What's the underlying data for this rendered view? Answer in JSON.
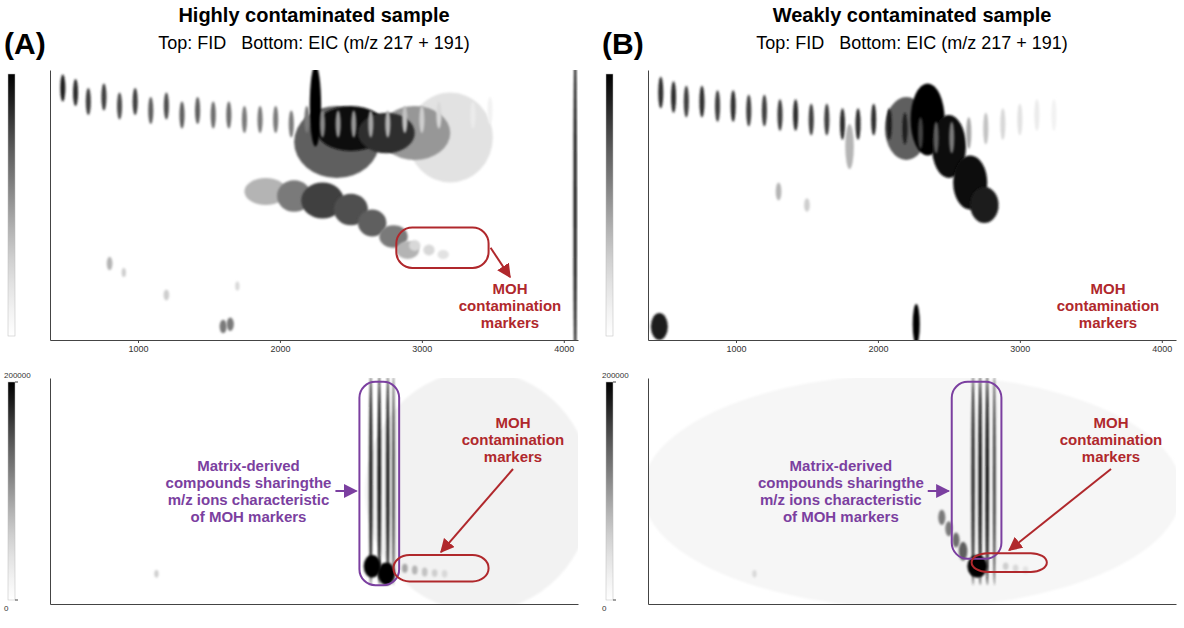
{
  "panels": [
    {
      "letter": "(A)",
      "title": "Highly contaminated sample",
      "subtitle": "Top: FID   Bottom: EIC (m/z 217 + 191)"
    },
    {
      "letter": "(B)",
      "title": "Weakly contaminated sample",
      "subtitle": "Top: FID   Bottom: EIC (m/z 217 + 191)"
    }
  ],
  "chart_data": [
    {
      "type": "heatmap",
      "xlim": [
        380,
        4100
      ],
      "xticks": [
        1000,
        2000,
        3000,
        4000
      ],
      "ylim": [
        0,
        6
      ],
      "tick_labels": "x",
      "zlim": [
        0,
        100
      ],
      "spots": {
        "x": [
          3200,
          2400,
          2950,
          2500,
          2750,
          2250,
          470,
          560,
          650,
          760,
          870,
          980,
          1090,
          1200,
          1310,
          1420,
          1530,
          1640,
          1750,
          1860,
          1970,
          2080,
          2190,
          2300,
          2410,
          2520,
          2640,
          2760,
          2880,
          3000,
          3120,
          3240,
          3360,
          3480,
          1900,
          2100,
          2300,
          2500,
          2650,
          2800,
          2900,
          800,
          1200,
          1600,
          1650,
          900,
          1700,
          2950,
          3050,
          3150,
          4080
        ],
        "y": [
          4.5,
          4.4,
          4.6,
          4.7,
          4.6,
          5.2,
          5.6,
          5.5,
          5.3,
          5.4,
          5.2,
          5.3,
          5.1,
          5.2,
          5.0,
          5.1,
          5.0,
          5.0,
          4.9,
          4.9,
          4.9,
          4.8,
          4.9,
          4.8,
          4.8,
          4.8,
          4.8,
          4.8,
          4.9,
          4.9,
          5.0,
          5.0,
          5.0,
          5.1,
          3.3,
          3.2,
          3.1,
          2.9,
          2.6,
          2.3,
          2.0,
          1.7,
          1.0,
          0.3,
          0.35,
          1.5,
          1.2,
          2.1,
          2.0,
          1.9,
          3
        ],
        "z": [
          20,
          70,
          50,
          95,
          85,
          100,
          90,
          85,
          80,
          80,
          75,
          80,
          70,
          75,
          70,
          70,
          65,
          65,
          60,
          60,
          60,
          60,
          60,
          55,
          50,
          50,
          45,
          40,
          35,
          30,
          25,
          20,
          15,
          10,
          40,
          60,
          80,
          75,
          70,
          60,
          40,
          40,
          30,
          60,
          60,
          30,
          25,
          25,
          25,
          20,
          90
        ],
        "sx": [
          300,
          300,
          250,
          250,
          200,
          40,
          18,
          18,
          18,
          18,
          18,
          18,
          18,
          18,
          18,
          18,
          18,
          18,
          18,
          18,
          18,
          18,
          18,
          18,
          18,
          18,
          18,
          18,
          18,
          18,
          18,
          18,
          18,
          18,
          150,
          120,
          150,
          120,
          100,
          100,
          80,
          20,
          20,
          25,
          25,
          15,
          15,
          40,
          40,
          40,
          12
        ],
        "sy": [
          1.0,
          0.8,
          0.6,
          0.5,
          0.45,
          0.9,
          0.3,
          0.3,
          0.3,
          0.3,
          0.3,
          0.3,
          0.3,
          0.3,
          0.3,
          0.3,
          0.3,
          0.3,
          0.3,
          0.3,
          0.3,
          0.3,
          0.3,
          0.3,
          0.3,
          0.3,
          0.3,
          0.3,
          0.3,
          0.3,
          0.3,
          0.3,
          0.3,
          0.3,
          0.3,
          0.35,
          0.4,
          0.35,
          0.3,
          0.25,
          0.2,
          0.15,
          0.12,
          0.15,
          0.15,
          0.1,
          0.1,
          0.12,
          0.12,
          0.1,
          4
        ]
      },
      "annotations": [
        {
          "text": "MOH contamination markers",
          "color": "#b0282c",
          "region": {
            "x": [
              2820,
              3470
            ],
            "y": [
              1.6,
              2.5
            ]
          }
        }
      ]
    },
    {
      "type": "heatmap",
      "xlim": [
        380,
        4100
      ],
      "ylim": [
        0,
        6
      ],
      "tick_labels": false,
      "zlim": [
        0,
        200000
      ],
      "zticks": [
        0,
        200000
      ],
      "spots": {
        "x": [
          3400,
          2640,
          2700,
          2760,
          2800,
          2650,
          2750,
          2880,
          2950,
          3020,
          3090,
          3160,
          1130
        ],
        "y": [
          3,
          3.3,
          3.3,
          3.3,
          3.3,
          1.0,
          0.8,
          0.95,
          0.9,
          0.85,
          0.82,
          0.8,
          0.8
        ],
        "z": [
          20000,
          180000,
          190000,
          180000,
          150000,
          200000,
          200000,
          90000,
          80000,
          70000,
          60000,
          50000,
          60000
        ],
        "sx": [
          800,
          12,
          12,
          12,
          10,
          60,
          60,
          20,
          20,
          20,
          20,
          20,
          15
        ],
        "sy": [
          3.2,
          2.8,
          2.8,
          2.8,
          2.8,
          0.3,
          0.3,
          0.12,
          0.12,
          0.12,
          0.1,
          0.1,
          0.1
        ]
      },
      "annotations": [
        {
          "text": "Matrix-derived compounds sharingthe m/z ions characteristic of MOH markers",
          "color": "#7b3fa0",
          "region": {
            "x": [
              2560,
              2840
            ],
            "y": [
              0.5,
              5.9
            ]
          }
        },
        {
          "text": "MOH contamination markers",
          "color": "#b0282c",
          "region": {
            "x": [
              2800,
              3470
            ],
            "y": [
              0.6,
              1.3
            ]
          }
        }
      ]
    },
    {
      "type": "heatmap",
      "xlim": [
        380,
        4100
      ],
      "xticks": [
        1000,
        2000,
        3000,
        4000
      ],
      "ylim": [
        0,
        6
      ],
      "tick_labels": "x",
      "zlim": [
        0,
        100
      ],
      "spots": {
        "x": [
          2200,
          2350,
          2500,
          2650,
          2750,
          470,
          560,
          650,
          760,
          870,
          980,
          1090,
          1200,
          1310,
          1420,
          1530,
          1640,
          1750,
          1860,
          1970,
          2080,
          2190,
          2300,
          2410,
          2520,
          2640,
          2760,
          2880,
          3000,
          3120,
          3240,
          1800,
          1300,
          460,
          2270,
          1500
        ],
        "y": [
          4.7,
          4.9,
          4.3,
          3.5,
          3.0,
          5.5,
          5.4,
          5.3,
          5.3,
          5.2,
          5.2,
          5.1,
          5.1,
          5.0,
          5.0,
          4.9,
          4.9,
          4.8,
          4.8,
          4.9,
          4.8,
          4.7,
          4.6,
          4.5,
          4.5,
          4.6,
          4.7,
          4.8,
          4.9,
          5.0,
          5.0,
          4.3,
          3.3,
          0.3,
          0.35,
          3.0
        ],
        "z": [
          70,
          100,
          95,
          95,
          90,
          85,
          85,
          80,
          85,
          80,
          85,
          80,
          80,
          80,
          85,
          80,
          80,
          85,
          85,
          85,
          90,
          90,
          80,
          70,
          60,
          45,
          35,
          25,
          20,
          15,
          10,
          40,
          40,
          90,
          100,
          30
        ],
        "sx": [
          150,
          120,
          120,
          120,
          100,
          18,
          18,
          18,
          18,
          18,
          18,
          18,
          18,
          18,
          18,
          18,
          18,
          18,
          18,
          18,
          18,
          18,
          18,
          18,
          18,
          18,
          18,
          18,
          18,
          18,
          18,
          30,
          20,
          60,
          25,
          20
        ],
        "sy": [
          0.7,
          0.8,
          0.7,
          0.6,
          0.4,
          0.35,
          0.35,
          0.35,
          0.35,
          0.35,
          0.35,
          0.35,
          0.35,
          0.35,
          0.35,
          0.35,
          0.35,
          0.35,
          0.35,
          0.35,
          0.35,
          0.35,
          0.35,
          0.35,
          0.35,
          0.35,
          0.35,
          0.35,
          0.35,
          0.35,
          0.35,
          0.5,
          0.2,
          0.3,
          0.45,
          0.15
        ]
      },
      "annotations": [
        {
          "text": "MOH contamination markers",
          "color": "#b0282c"
        }
      ]
    },
    {
      "type": "heatmap",
      "xlim": [
        380,
        4100
      ],
      "ylim": [
        0,
        6
      ],
      "tick_labels": false,
      "zlim": [
        0,
        200000
      ],
      "zticks": [
        0,
        200000
      ],
      "spots": {
        "x": [
          2240,
          2670,
          2720,
          2770,
          2820,
          2450,
          2500,
          2550,
          2600,
          2700,
          2900,
          2970,
          3040,
          1130
        ],
        "y": [
          3,
          3.3,
          3.3,
          3.3,
          3.3,
          2.3,
          2.0,
          1.7,
          1.4,
          1.0,
          1.0,
          0.95,
          0.9,
          0.8
        ],
        "z": [
          15000,
          170000,
          190000,
          190000,
          160000,
          120000,
          120000,
          130000,
          140000,
          200000,
          60000,
          50000,
          40000,
          50000
        ],
        "sx": [
          1900,
          12,
          12,
          12,
          10,
          25,
          25,
          25,
          30,
          70,
          20,
          20,
          20,
          15
        ],
        "sy": [
          3.1,
          2.8,
          2.8,
          2.8,
          2.8,
          0.2,
          0.2,
          0.2,
          0.25,
          0.3,
          0.1,
          0.1,
          0.1,
          0.1
        ]
      },
      "annotations": [
        {
          "text": "Matrix-derived compounds sharingthe m/z ions characteristic of MOH markers",
          "color": "#7b3fa0",
          "region": {
            "x": [
              2520,
              2870
            ],
            "y": [
              1.2,
              5.9
            ]
          }
        },
        {
          "text": "MOH contamination markers",
          "color": "#b0282c",
          "region": {
            "x": [
              2660,
              3190
            ],
            "y": [
              0.85,
              1.35
            ]
          }
        }
      ]
    }
  ]
}
